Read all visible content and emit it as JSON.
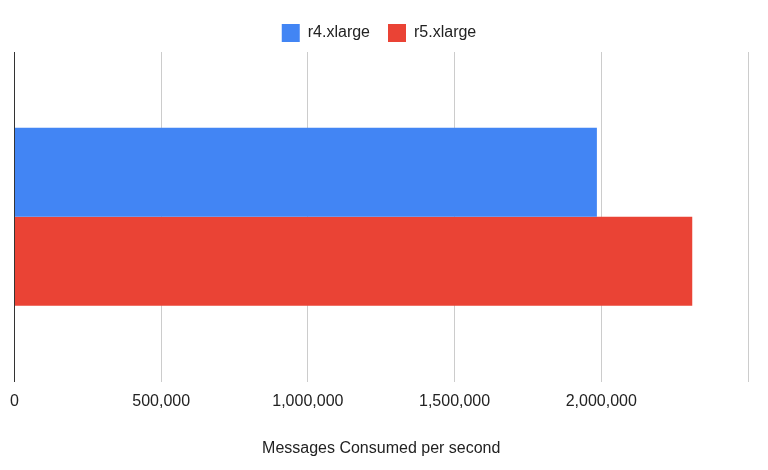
{
  "chart_data": {
    "type": "bar",
    "orientation": "horizontal",
    "x_label": "Messages Consumed per second",
    "categories": [
      null
    ],
    "series": [
      {
        "name": "r4.xlarge",
        "color": "#4285f4",
        "values": [
          1985000
        ]
      },
      {
        "name": "r5.xlarge",
        "color": "#ea4335",
        "values": [
          2310000
        ]
      }
    ],
    "xlim": [
      0,
      2500000
    ],
    "xticks": [
      0,
      {
        "value": 500000,
        "label": "500,000"
      },
      {
        "value": 1000000,
        "label": "1,000,000"
      },
      {
        "value": 1500000,
        "label": "1,500,000"
      },
      {
        "value": 2000000,
        "label": "2,000,000"
      }
    ],
    "grid": true,
    "legend": "top",
    "tick_labels": "x"
  }
}
